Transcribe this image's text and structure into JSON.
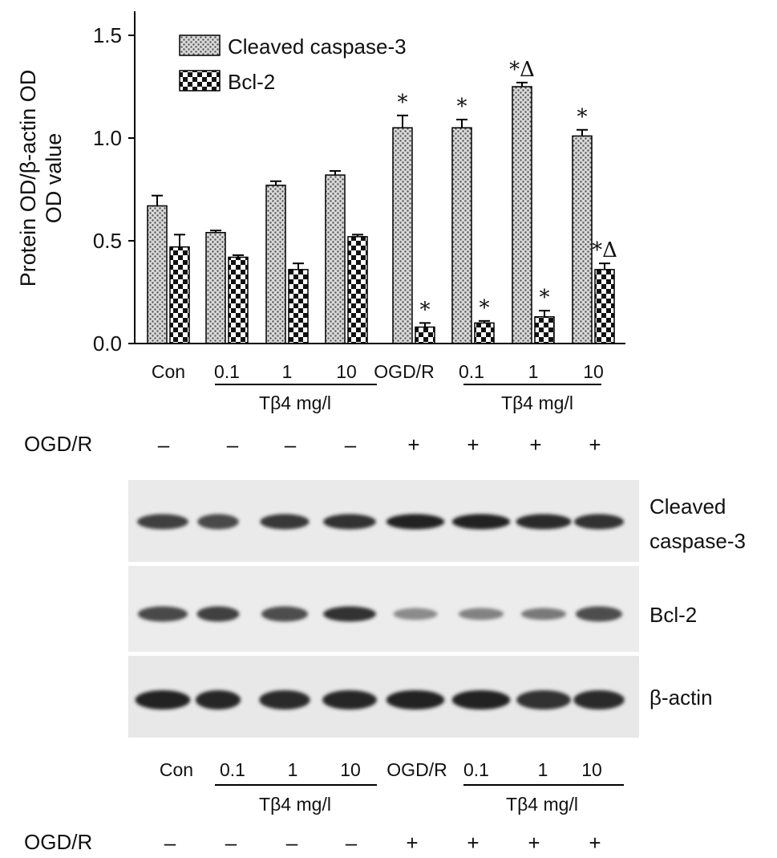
{
  "chart_data": {
    "type": "bar",
    "ylabel_line1": "Protein OD/β-actin OD",
    "ylabel_line2": "OD value",
    "ylim": [
      0,
      1.5
    ],
    "yticks": [
      "0.0",
      "0.5",
      "1.0",
      "1.5"
    ],
    "categories": [
      "Con",
      "0.1",
      "1",
      "10",
      "OGD/R",
      "0.1",
      "1",
      "10"
    ],
    "group_labels": [
      "Tβ4 mg/l",
      "Tβ4 mg/l"
    ],
    "ogdr_row_label": "OGD/R",
    "ogdr_signs": [
      "–",
      "–",
      "–",
      "–",
      "+",
      "+",
      "+",
      "+"
    ],
    "legend_position": "top-left",
    "series": [
      {
        "name": "Cleaved caspase-3",
        "values": [
          0.67,
          0.54,
          0.77,
          0.82,
          1.05,
          1.05,
          1.25,
          1.01
        ],
        "errors": [
          0.05,
          0.01,
          0.02,
          0.02,
          0.06,
          0.04,
          0.02,
          0.03
        ],
        "annotations": [
          "",
          "",
          "",
          "",
          "*",
          "*",
          "*Δ",
          "*"
        ]
      },
      {
        "name": "Bcl-2",
        "values": [
          0.47,
          0.42,
          0.36,
          0.52,
          0.08,
          0.1,
          0.13,
          0.36
        ],
        "errors": [
          0.06,
          0.01,
          0.03,
          0.01,
          0.02,
          0.01,
          0.03,
          0.03
        ],
        "annotations": [
          "",
          "",
          "",
          "",
          "*",
          "*",
          "*",
          "*Δ"
        ]
      }
    ]
  },
  "blot": {
    "rows": [
      {
        "label_line1": "Cleaved",
        "label_line2": "caspase-3",
        "intensities": [
          0.78,
          0.72,
          0.82,
          0.85,
          0.95,
          0.95,
          0.9,
          0.85
        ]
      },
      {
        "label_line1": "Bcl-2",
        "label_line2": "",
        "intensities": [
          0.72,
          0.78,
          0.7,
          0.85,
          0.35,
          0.4,
          0.45,
          0.7
        ]
      },
      {
        "label_line1": "β-actin",
        "label_line2": "",
        "intensities": [
          0.95,
          0.92,
          0.9,
          0.92,
          0.95,
          0.95,
          0.85,
          0.9
        ]
      }
    ],
    "lane_labels": [
      "Con",
      "0.1",
      "1",
      "10",
      "OGD/R",
      "0.1",
      "1",
      "10"
    ],
    "group_labels": [
      "Tβ4 mg/l",
      "Tβ4 mg/l"
    ],
    "ogdr_row_label": "OGD/R",
    "ogdr_signs": [
      "–",
      "–",
      "–",
      "–",
      "+",
      "+",
      "+",
      "+"
    ]
  },
  "colors": {
    "bar_outline": "#000000",
    "blot_background": "#eaeaea",
    "band": "#1a1a1a"
  }
}
